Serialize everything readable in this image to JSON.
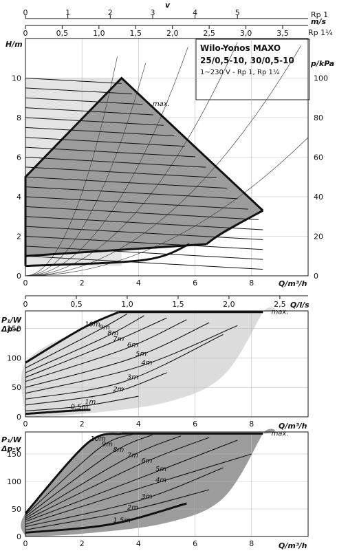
{
  "title": {
    "line1": "Wilo-Yonos MAXO",
    "line2": "25/0,5-10, 30/0,5-10",
    "line3": "1~230 V - Rp 1, Rp 1¼"
  },
  "top_axes": {
    "v_label": "v",
    "v_unit": "m/s",
    "rp1": {
      "label": "Rp 1",
      "ticks": [
        0,
        1,
        2,
        3,
        4,
        5
      ],
      "q_per_unit": 1.5
    },
    "rp114": {
      "label": "Rp 1¼",
      "ticks": [
        "0",
        "0,5",
        "1,0",
        "1,5",
        "2,0",
        "2,5",
        "3,0",
        "3,5"
      ],
      "q_per_unit": 2.6
    }
  },
  "chart_data": [
    {
      "type": "area",
      "name": "head",
      "xlabel": "Q/m³/h",
      "ylabel": "H/m",
      "ylabel_right": "p/kPa",
      "xlim": [
        0,
        10
      ],
      "ylim": [
        0,
        12
      ],
      "xticks": [
        0,
        2,
        4,
        6,
        8
      ],
      "yticks": [
        0,
        2,
        4,
        6,
        8,
        10
      ],
      "yticks_right": [
        0,
        20,
        40,
        60,
        80,
        100
      ],
      "max_label": "max.",
      "envelope": [
        [
          0,
          0.5
        ],
        [
          0,
          5
        ],
        [
          3.4,
          10
        ],
        [
          8.4,
          3.3
        ],
        [
          6.4,
          1.6
        ],
        [
          0,
          1
        ]
      ],
      "min_curve": [
        [
          0,
          0.5
        ],
        [
          4.2,
          0.8
        ],
        [
          5.8,
          1.6
        ]
      ],
      "levels": [
        1,
        1.5,
        2,
        2.5,
        3,
        3.5,
        4,
        4.5,
        5,
        5.5,
        6,
        6.5,
        7,
        7.5,
        8,
        8.5,
        9,
        9.5,
        10
      ],
      "max_curve": [
        [
          3.4,
          10
        ],
        [
          8.4,
          3.3
        ]
      ]
    },
    {
      "type": "line",
      "name": "power-dp-c",
      "xlabel": "Q/m³/h",
      "xlabel_top": "Q/l/s",
      "ylabel": "P₁/W",
      "mode_label": "Δp-c",
      "xlim": [
        0,
        10
      ],
      "ylim": [
        0,
        180
      ],
      "xticks": [
        0,
        2,
        4,
        6,
        8
      ],
      "xticks_top": [
        "0",
        "0,5",
        "1,0",
        "1,5",
        "2,0",
        "2,5"
      ],
      "yticks": [
        0,
        50,
        100,
        150
      ],
      "max_label": "max.",
      "series": [
        {
          "name": "0,5m",
          "values": [
            [
              0,
              5
            ],
            [
              1.5,
              10
            ],
            [
              2.3,
              12
            ]
          ]
        },
        {
          "name": "1m",
          "values": [
            [
              0,
              10
            ],
            [
              2,
              18
            ],
            [
              4,
              35
            ]
          ]
        },
        {
          "name": "2m",
          "values": [
            [
              0,
              20
            ],
            [
              3,
              40
            ],
            [
              5,
              75
            ]
          ]
        },
        {
          "name": "3m",
          "values": [
            [
              0,
              30
            ],
            [
              3.5,
              60
            ],
            [
              7,
              140
            ]
          ]
        },
        {
          "name": "4m",
          "values": [
            [
              0,
              40
            ],
            [
              4,
              85
            ],
            [
              7.5,
              155
            ]
          ]
        },
        {
          "name": "5m",
          "values": [
            [
              0,
              50
            ],
            [
              3.8,
              100
            ],
            [
              6.5,
              160
            ]
          ]
        },
        {
          "name": "6m",
          "values": [
            [
              0,
              60
            ],
            [
              3.5,
              115
            ],
            [
              5.7,
              165
            ]
          ]
        },
        {
          "name": "7m",
          "values": [
            [
              0,
              67
            ],
            [
              3,
              125
            ],
            [
              5,
              168
            ]
          ]
        },
        {
          "name": "8m",
          "values": [
            [
              0,
              75
            ],
            [
              2.8,
              135
            ],
            [
              4.2,
              172
            ]
          ]
        },
        {
          "name": "9m",
          "values": [
            [
              0,
              83
            ],
            [
              2.5,
              145
            ],
            [
              3.6,
              175
            ]
          ]
        },
        {
          "name": "10m",
          "values": [
            [
              0,
              92
            ],
            [
              2,
              150
            ],
            [
              3.3,
              178
            ]
          ]
        }
      ],
      "max_curve": [
        [
          3.3,
          178
        ],
        [
          8.4,
          178
        ]
      ]
    },
    {
      "type": "line",
      "name": "power-dp-v",
      "xlabel": "Q/m³/h",
      "ylabel": "P₁/W",
      "mode_label": "Δp-v",
      "xlim": [
        0,
        10
      ],
      "ylim": [
        0,
        190
      ],
      "xticks": [
        0,
        2,
        4,
        6,
        8
      ],
      "yticks": [
        0,
        50,
        100,
        150
      ],
      "max_label": "max.",
      "series": [
        {
          "name": "1,5m",
          "values": [
            [
              0,
              7
            ],
            [
              3,
              22
            ],
            [
              5.7,
              60
            ]
          ]
        },
        {
          "name": "2m",
          "values": [
            [
              0,
              12
            ],
            [
              3.5,
              45
            ],
            [
              6.5,
              85
            ]
          ]
        },
        {
          "name": "3m",
          "values": [
            [
              0,
              18
            ],
            [
              4,
              65
            ],
            [
              7,
              125
            ]
          ]
        },
        {
          "name": "4m",
          "values": [
            [
              0,
              22
            ],
            [
              4.5,
              95
            ],
            [
              8,
              150
            ]
          ]
        },
        {
          "name": "5m",
          "values": [
            [
              0,
              27
            ],
            [
              4.5,
              115
            ],
            [
              7.5,
              175
            ]
          ]
        },
        {
          "name": "6m",
          "values": [
            [
              0,
              30
            ],
            [
              4,
              130
            ],
            [
              6.5,
              180
            ]
          ]
        },
        {
          "name": "7m",
          "values": [
            [
              0,
              33
            ],
            [
              3.5,
              140
            ],
            [
              5.5,
              183
            ]
          ]
        },
        {
          "name": "8m",
          "values": [
            [
              0,
              36
            ],
            [
              3,
              150
            ],
            [
              4.5,
              185
            ]
          ]
        },
        {
          "name": "9m",
          "values": [
            [
              0,
              39
            ],
            [
              2.6,
              160
            ],
            [
              3.8,
              186
            ]
          ]
        },
        {
          "name": "10m",
          "values": [
            [
              0,
              42
            ],
            [
              2.2,
              170
            ],
            [
              3.4,
              187
            ]
          ]
        }
      ],
      "max_curve": [
        [
          3.4,
          187
        ],
        [
          8.4,
          187
        ]
      ]
    }
  ]
}
